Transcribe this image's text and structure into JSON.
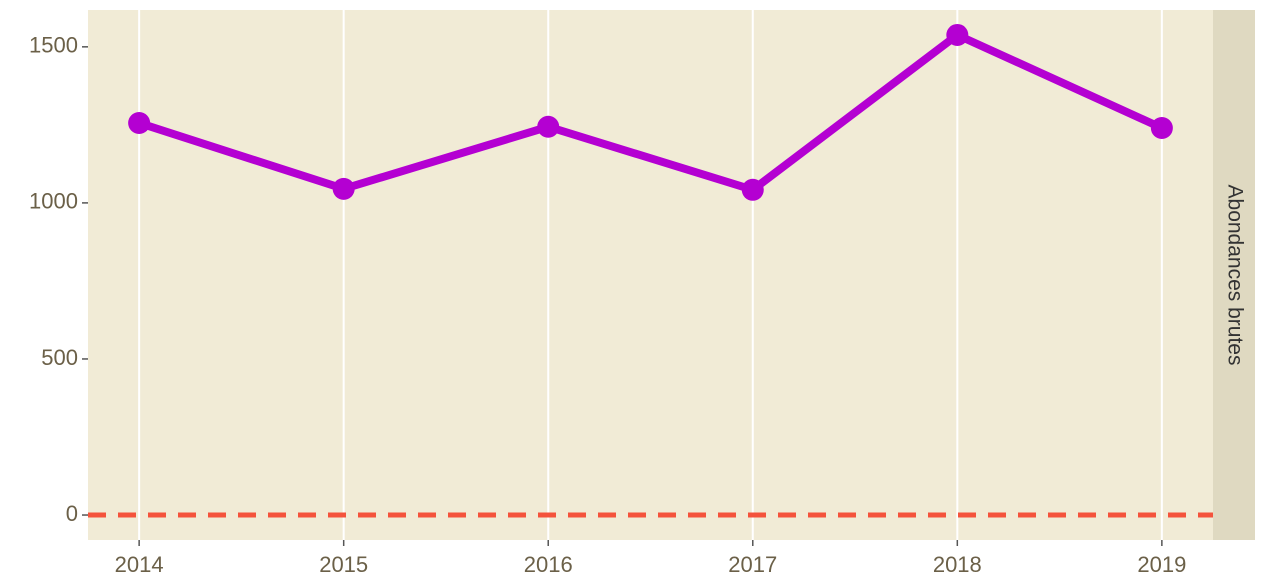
{
  "chart_data": {
    "type": "line",
    "facet_label": "Abondances brutes",
    "x": [
      2014,
      2015,
      2016,
      2017,
      2018,
      2019
    ],
    "series": [
      {
        "color": "#b400d2",
        "values": [
          1256,
          1045,
          1244,
          1042,
          1538,
          1240
        ]
      }
    ],
    "xlim": [
      2013.75,
      2019.25
    ],
    "xticks": [
      2014,
      2015,
      2016,
      2017,
      2018,
      2019
    ],
    "ylim": [
      -80,
      1618
    ],
    "yticks": [
      0,
      500,
      1000,
      1500
    ],
    "grid": "x",
    "hline": {
      "value": 0,
      "color": "#f4533c",
      "style": "dashed"
    }
  }
}
